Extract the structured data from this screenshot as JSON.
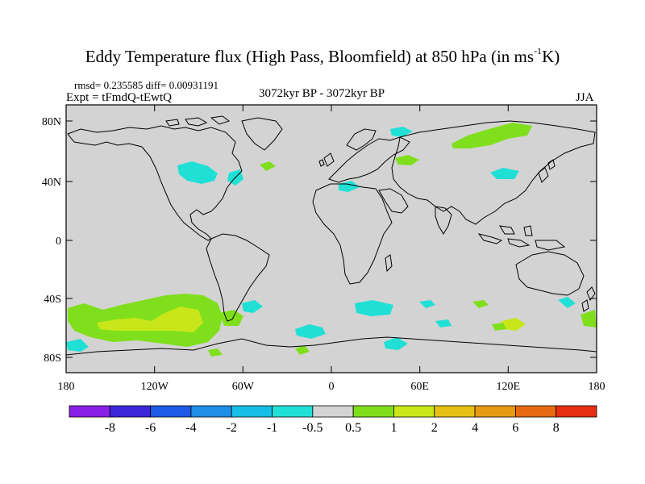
{
  "header": {
    "title_main": "Eddy Temperature flux (High Pass, Bloomfield) at 850 hPa (in ms",
    "title_sup": "-1",
    "title_end": "K)",
    "stats": "rmsd= 0.235585 diff= 0.00931191",
    "experiment": "Expt = tFmdQ-tEwtQ",
    "period": "3072kyr BP - 3072kyr BP",
    "season": "JJA"
  },
  "map": {
    "lat_ticks": [
      "80N",
      "40N",
      "0",
      "40S",
      "80S"
    ],
    "lon_ticks": [
      "180",
      "120W",
      "60W",
      "0",
      "60E",
      "120E",
      "180"
    ],
    "background_color": "#d3d3d3"
  },
  "colorbar": {
    "labels": [
      "-8",
      "-6",
      "-4",
      "-2",
      "-1",
      "-0.5",
      "0.5",
      "1",
      "2",
      "4",
      "6",
      "8"
    ],
    "colors": [
      "#8a1fe6",
      "#3c28d9",
      "#1f5ae6",
      "#1e8ee6",
      "#16bde6",
      "#20e0d6",
      "#d3d3d3",
      "#80df1c",
      "#c8e61a",
      "#e6c012",
      "#e69a12",
      "#e66a12",
      "#e62e10"
    ]
  }
}
